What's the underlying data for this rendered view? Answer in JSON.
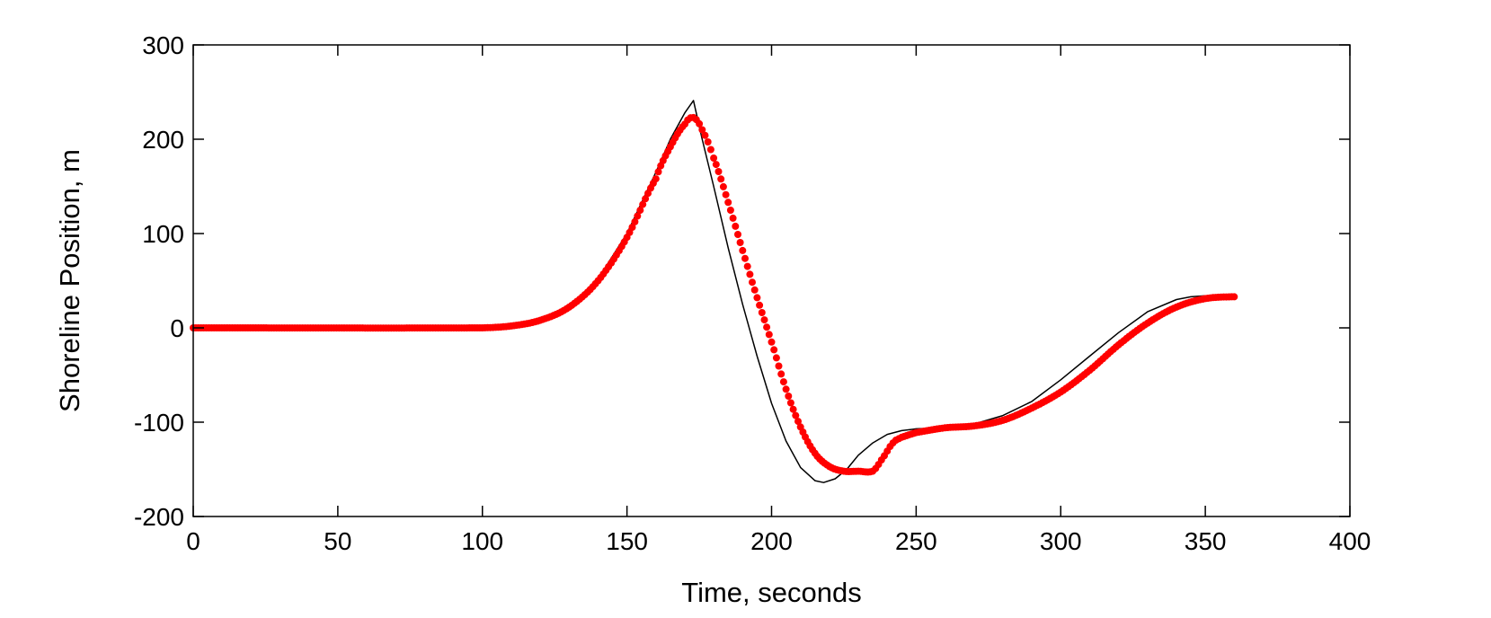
{
  "chart_data": {
    "type": "line",
    "title": "",
    "xlabel": "Time, seconds",
    "ylabel": "Shoreline Position, m",
    "xlim": [
      0,
      400
    ],
    "ylim": [
      -200,
      300
    ],
    "xticks": [
      0,
      50,
      100,
      150,
      200,
      250,
      300,
      350,
      400
    ],
    "yticks": [
      -200,
      -100,
      0,
      100,
      200,
      300
    ],
    "xtick_labels": [
      "0",
      "50",
      "100",
      "150",
      "200",
      "250",
      "300",
      "350",
      "400"
    ],
    "ytick_labels": [
      "-200",
      "-100",
      "0",
      "100",
      "200",
      "300"
    ],
    "grid": false,
    "series": [
      {
        "style": "solid-line",
        "color": "#000000",
        "x": [
          0,
          100,
          110,
          120,
          130,
          140,
          150,
          160,
          165,
          170,
          173,
          176,
          180,
          185,
          190,
          195,
          200,
          205,
          210,
          215,
          218,
          222,
          226,
          230,
          235,
          240,
          245,
          250,
          260,
          270,
          280,
          290,
          300,
          310,
          320,
          330,
          340,
          345,
          350
        ],
        "y": [
          0,
          0,
          2,
          8,
          22,
          52,
          100,
          165,
          200,
          228,
          241,
          200,
          150,
          85,
          25,
          -30,
          -80,
          -120,
          -148,
          -162,
          -164,
          -160,
          -150,
          -135,
          -122,
          -113,
          -109,
          -107,
          -106,
          -102,
          -93,
          -78,
          -55,
          -30,
          -5,
          17,
          30,
          33,
          34
        ]
      },
      {
        "style": "thick-dotted",
        "color": "#ff0000",
        "x": [
          0,
          100,
          110,
          120,
          130,
          140,
          150,
          160,
          165,
          170,
          173,
          176,
          180,
          185,
          190,
          195,
          200,
          205,
          210,
          215,
          220,
          225,
          230,
          235,
          238,
          242,
          245,
          250,
          260,
          270,
          280,
          290,
          300,
          310,
          320,
          330,
          340,
          350,
          360
        ],
        "y": [
          0,
          0,
          2,
          8,
          22,
          50,
          96,
          158,
          192,
          216,
          223,
          210,
          180,
          133,
          82,
          32,
          -15,
          -65,
          -105,
          -133,
          -147,
          -152,
          -152,
          -152,
          -140,
          -122,
          -116,
          -111,
          -106,
          -104,
          -98,
          -85,
          -68,
          -45,
          -18,
          5,
          22,
          31,
          33
        ]
      }
    ]
  }
}
